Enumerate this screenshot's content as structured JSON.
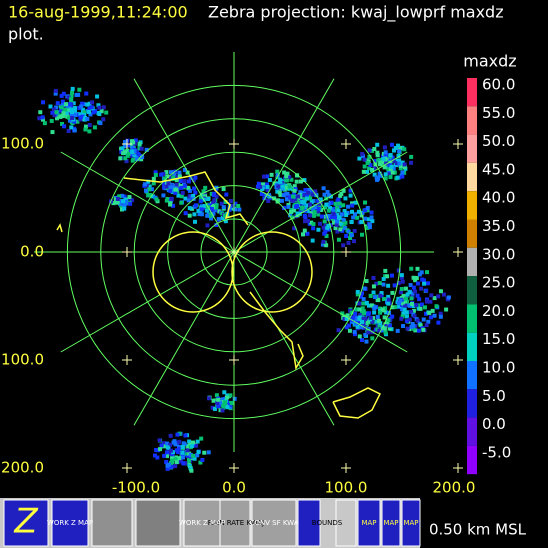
{
  "header": {
    "time": "16-aug-1999,11:24:00",
    "title": "Zebra projection: kwaj_lowprf maxdz",
    "title_cont": "plot."
  },
  "plot": {
    "x_labels": [
      "-100.0",
      "0.0",
      "100.0",
      "200.0"
    ],
    "y_labels": [
      "100.0",
      "0.0",
      "100.0",
      "200.0"
    ]
  },
  "colorbar": {
    "title": "maxdz",
    "labels": [
      "60.0",
      "55.0",
      "50.0",
      "45.0",
      "40.0",
      "35.0",
      "30.0",
      "25.0",
      "20.0",
      "15.0",
      "10.0",
      "5.0",
      "0.0",
      "-5.0"
    ],
    "colors": [
      "#ff3060",
      "#ff8080",
      "#ffa0a0",
      "#ffd8a0",
      "#f0b000",
      "#d08000",
      "#b0b0b0",
      "#106040",
      "#00c070",
      "#00d0c0",
      "#1070ff",
      "#2020e0",
      "#6010e0",
      "#9000ff"
    ]
  },
  "toolbar": {
    "buttons": [
      "WORK Z MAP",
      "RAIN RATE KWAJ",
      "WORK Z MAP",
      "CONV SF KWA",
      "BOUNDS",
      "MAP",
      "MAP",
      "MAP"
    ],
    "altitude": "0.50 km MSL"
  }
}
